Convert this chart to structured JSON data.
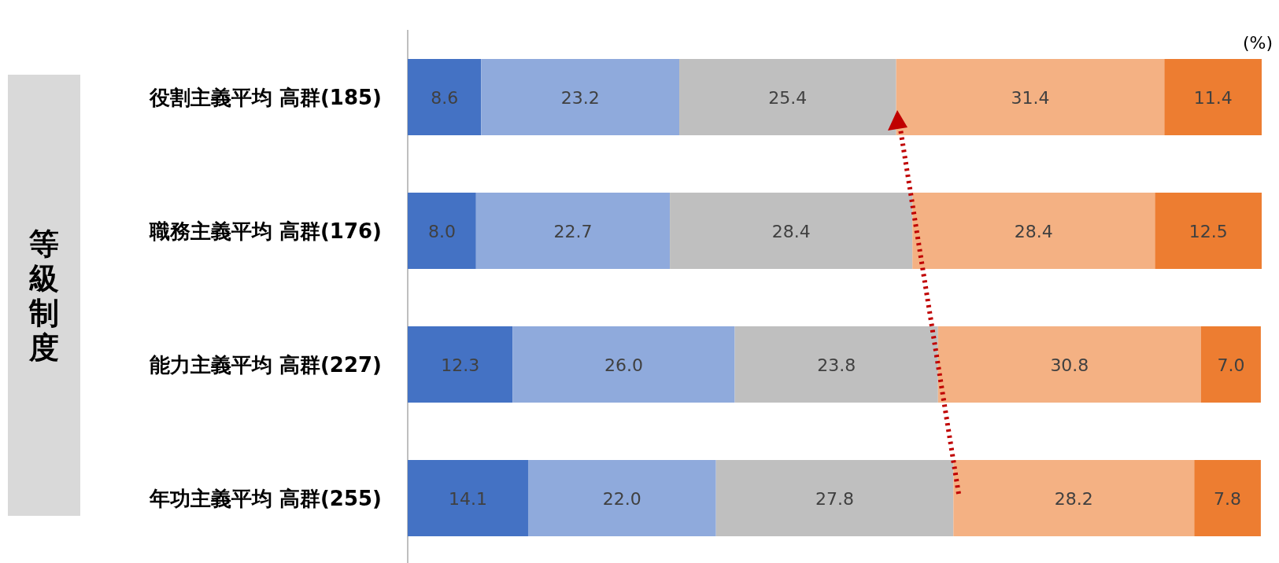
{
  "chart_data": {
    "type": "bar",
    "orientation": "horizontal",
    "stacked": true,
    "tick_labels": "y",
    "ylabel": "等級制度",
    "annotations": [
      "(%)"
    ],
    "xlim": [
      0,
      100
    ],
    "categories": [
      "役割主義平均 高群(185)",
      "職務主義平均 高群(176)",
      "能力主義平均 高群(227)",
      "年功主義平均 高群(255)"
    ],
    "series": [
      {
        "color": "#4472c4",
        "values": [
          8.6,
          8.0,
          12.3,
          14.1
        ],
        "value_labels": [
          "8.6",
          "8.0",
          "12.3",
          "14.1"
        ]
      },
      {
        "color": "#8faadc",
        "values": [
          23.2,
          22.7,
          26.0,
          22.0
        ],
        "value_labels": [
          "23.2",
          "22.7",
          "26.0",
          "22.0"
        ]
      },
      {
        "color": "#bfbfbf",
        "values": [
          25.4,
          28.4,
          23.8,
          27.8
        ],
        "value_labels": [
          "25.4",
          "28.4",
          "23.8",
          "27.8"
        ]
      },
      {
        "color": "#f4b183",
        "values": [
          31.4,
          28.4,
          30.8,
          28.2
        ],
        "value_labels": [
          "31.4",
          "28.4",
          "30.8",
          "28.2"
        ]
      },
      {
        "color": "#ed7d31",
        "values": [
          11.4,
          12.5,
          7.0,
          7.8
        ],
        "value_labels": [
          "11.4",
          "12.5",
          "7.0",
          "7.8"
        ]
      }
    ]
  }
}
